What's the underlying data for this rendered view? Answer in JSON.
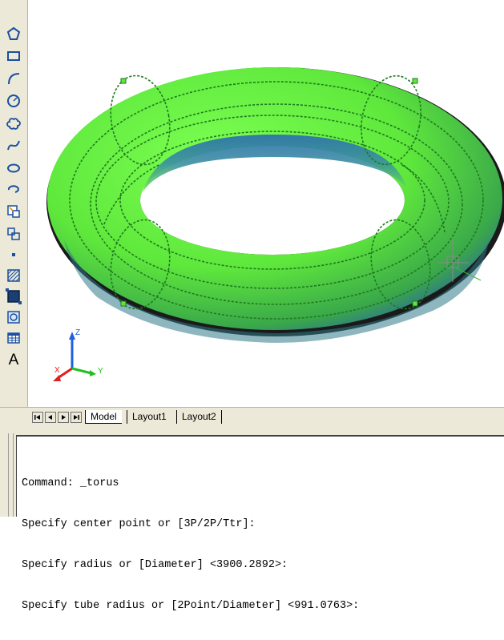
{
  "toolbar": {
    "text_tool_label": "A",
    "tools": [
      "line-icon",
      "polygon-icon",
      "rectangle-icon",
      "arc-icon",
      "circle-icon",
      "revision-cloud-icon",
      "spline-icon",
      "ellipse-icon",
      "ellipse-arc-icon",
      "insert-block-icon",
      "make-block-icon",
      "point-icon",
      "hatch-icon",
      "gradient-icon",
      "region-icon",
      "table-icon",
      "multiline-text-icon"
    ]
  },
  "viewport": {
    "ucs_axes": {
      "x": "X",
      "y": "Y",
      "z": "Z"
    },
    "colors": {
      "torus": "#5fe83c",
      "torus_shadow": "#3a6fb0",
      "wireframe": "#1e7a1e",
      "ucs_x": "#e02020",
      "ucs_y": "#20c020",
      "ucs_z": "#2060e0"
    }
  },
  "tabs": {
    "model": "Model",
    "layout1": "Layout1",
    "layout2": "Layout2"
  },
  "command": {
    "lines": [
      "Command: _torus",
      "Specify center point or [3P/2P/Ttr]:",
      "Specify radius or [Diameter] <3900.2892>:",
      "Specify tube radius or [2Point/Diameter] <991.0763>:"
    ]
  }
}
